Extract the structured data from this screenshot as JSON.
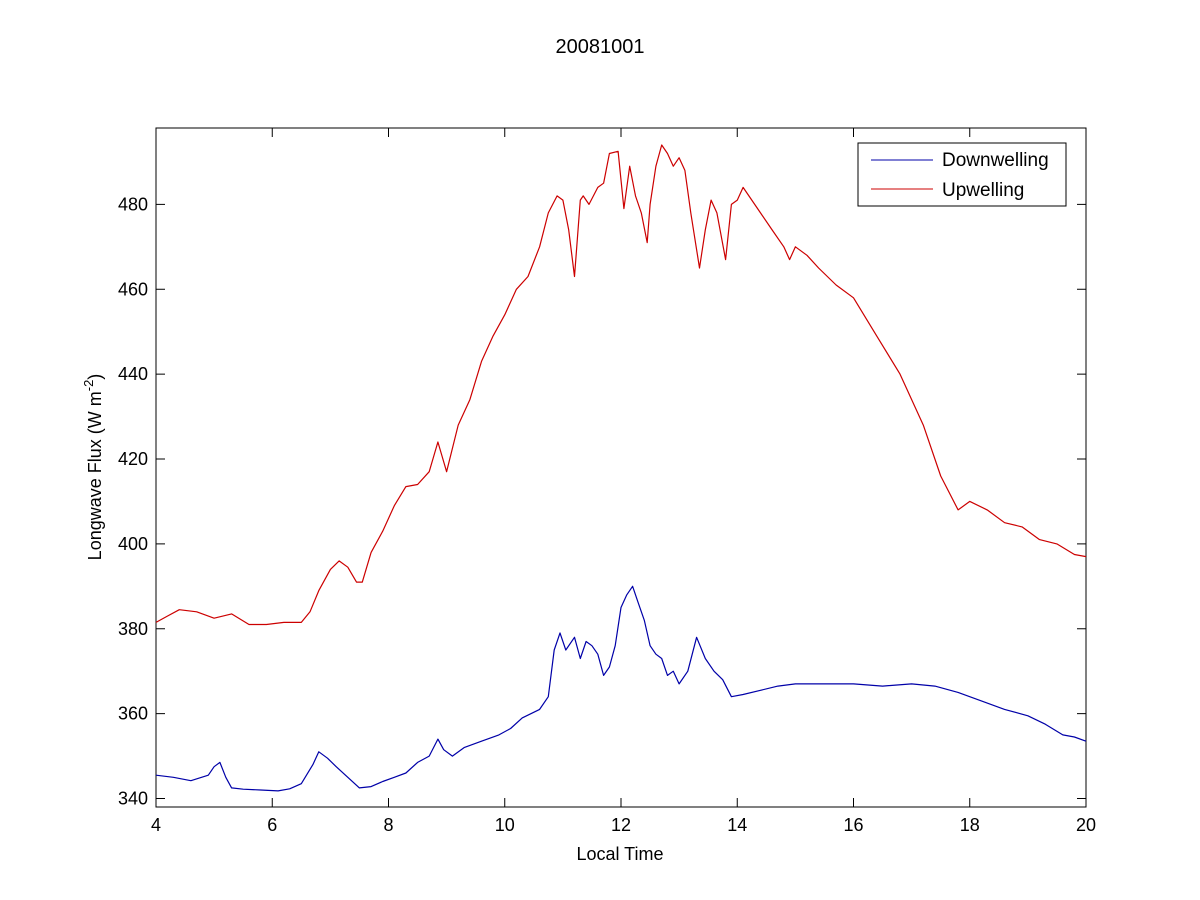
{
  "chart_data": {
    "type": "line",
    "title": "20081001",
    "xlabel": "Local Time",
    "ylabel": "Longwave Flux (W m",
    "ylabel_superscript": "-2",
    "ylabel_close": ")",
    "xlim": [
      4,
      20
    ],
    "ylim": [
      338,
      498
    ],
    "xticks": [
      4,
      6,
      8,
      10,
      12,
      14,
      16,
      18,
      20
    ],
    "yticks": [
      340,
      360,
      380,
      400,
      420,
      440,
      460,
      480
    ],
    "grid": false,
    "legend_position": "top-right",
    "series": [
      {
        "name": "Downwelling",
        "color": "#0000a8",
        "x": [
          4.0,
          4.3,
          4.6,
          4.9,
          5.0,
          5.1,
          5.2,
          5.3,
          5.5,
          5.8,
          6.1,
          6.3,
          6.5,
          6.7,
          6.8,
          6.95,
          7.1,
          7.3,
          7.5,
          7.7,
          7.9,
          8.1,
          8.3,
          8.5,
          8.7,
          8.85,
          8.95,
          9.1,
          9.3,
          9.6,
          9.9,
          10.1,
          10.3,
          10.6,
          10.75,
          10.85,
          10.95,
          11.05,
          11.2,
          11.3,
          11.4,
          11.5,
          11.6,
          11.7,
          11.8,
          11.9,
          12.0,
          12.1,
          12.2,
          12.3,
          12.4,
          12.5,
          12.6,
          12.7,
          12.8,
          12.9,
          13.0,
          13.15,
          13.3,
          13.45,
          13.6,
          13.75,
          13.9,
          14.1,
          14.4,
          14.7,
          15.0,
          15.5,
          16.0,
          16.5,
          17.0,
          17.4,
          17.8,
          18.2,
          18.6,
          19.0,
          19.3,
          19.6,
          19.8,
          20.0
        ],
        "y": [
          345.5,
          345,
          344.2,
          345.5,
          347.5,
          348.5,
          345,
          342.5,
          342.2,
          342,
          341.8,
          342.3,
          343.5,
          348,
          351,
          349.5,
          347.5,
          345,
          342.5,
          342.8,
          344,
          345,
          346,
          348.5,
          350,
          354,
          351.5,
          350,
          352,
          353.5,
          355,
          356.5,
          359,
          361,
          364,
          375,
          379,
          375,
          378,
          373,
          377,
          376,
          374,
          369,
          371,
          376,
          385,
          388,
          390,
          386,
          382,
          376,
          374,
          373,
          369,
          370,
          367,
          370,
          378,
          373,
          370,
          368,
          364,
          364.5,
          365.5,
          366.5,
          367,
          367,
          367,
          366.5,
          367,
          366.5,
          365,
          363,
          361,
          359.5,
          357.5,
          355,
          354.5,
          353.5
        ]
      },
      {
        "name": "Upwelling",
        "color": "#cc0000",
        "x": [
          4.0,
          4.2,
          4.4,
          4.7,
          5.0,
          5.3,
          5.6,
          5.9,
          6.2,
          6.5,
          6.65,
          6.8,
          7.0,
          7.15,
          7.3,
          7.45,
          7.55,
          7.7,
          7.9,
          8.1,
          8.3,
          8.5,
          8.7,
          8.85,
          9.0,
          9.2,
          9.4,
          9.6,
          9.8,
          10.0,
          10.2,
          10.4,
          10.6,
          10.75,
          10.9,
          11.0,
          11.1,
          11.2,
          11.3,
          11.35,
          11.45,
          11.6,
          11.7,
          11.8,
          11.95,
          12.05,
          12.15,
          12.25,
          12.35,
          12.45,
          12.5,
          12.6,
          12.7,
          12.8,
          12.9,
          13.0,
          13.1,
          13.2,
          13.35,
          13.45,
          13.55,
          13.65,
          13.8,
          13.9,
          14.0,
          14.1,
          14.2,
          14.4,
          14.6,
          14.8,
          14.9,
          15.0,
          15.2,
          15.4,
          15.7,
          16.0,
          16.4,
          16.8,
          17.2,
          17.5,
          17.8,
          18.0,
          18.3,
          18.6,
          18.9,
          19.2,
          19.5,
          19.8,
          20.0
        ],
        "y": [
          381.5,
          383,
          384.5,
          384,
          382.5,
          383.5,
          381,
          381,
          381.5,
          381.5,
          384,
          389,
          394,
          396,
          394.5,
          391,
          391,
          398,
          403,
          409,
          413.5,
          414,
          417,
          424,
          417,
          428,
          434,
          443,
          449,
          454,
          460,
          463,
          470,
          478,
          482,
          481,
          474,
          463,
          481,
          482,
          480,
          484,
          485,
          492,
          492.5,
          479,
          489,
          482,
          478,
          471,
          480,
          489,
          494,
          492,
          489,
          491,
          488,
          478,
          465,
          474,
          481,
          478,
          467,
          480,
          481,
          484,
          482,
          478,
          474,
          470,
          467,
          470,
          468,
          465,
          461,
          458,
          449,
          440,
          428,
          416,
          408,
          410,
          408,
          405,
          404,
          401,
          400,
          397.5,
          397
        ]
      }
    ]
  }
}
